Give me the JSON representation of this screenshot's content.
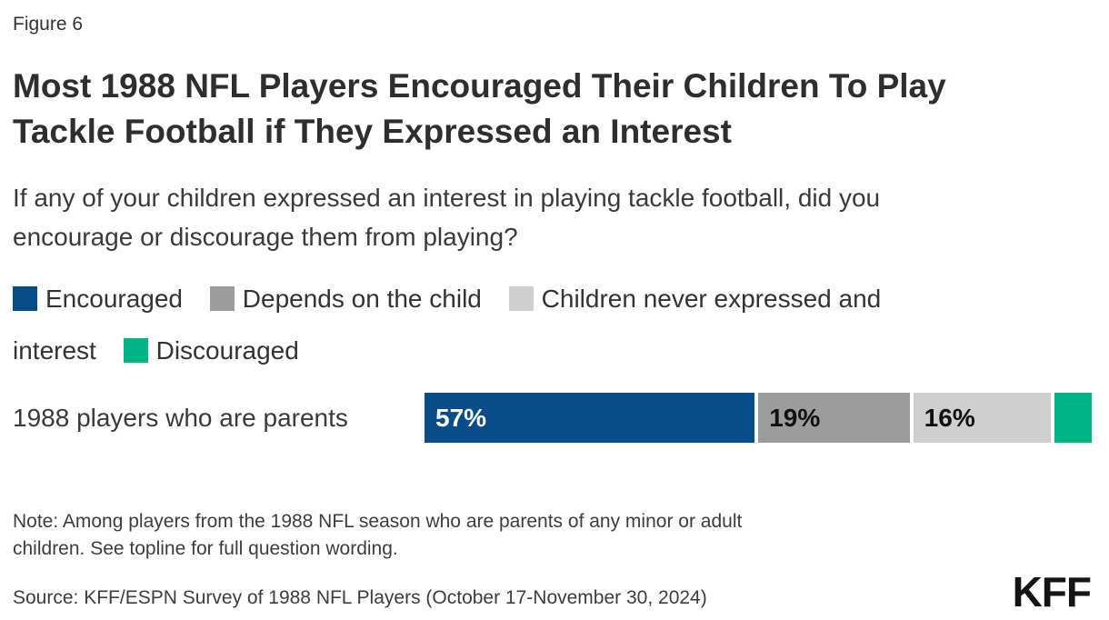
{
  "figure_label": "Figure 6",
  "title": "Most 1988 NFL Players Encouraged Their Children To Play Tackle Football if They Expressed an Interest",
  "subtitle": "If any of your children expressed an interest in playing tackle football, did you encourage or discourage them from playing?",
  "legend": [
    {
      "label": "Encouraged",
      "color": "#084C8A"
    },
    {
      "label": "Depends on the child",
      "color": "#9C9C9C"
    },
    {
      "label": "Children never expressed and interest",
      "color": "#CFCFCF"
    },
    {
      "label": "Discouraged",
      "color": "#00B585"
    }
  ],
  "chart_data": {
    "type": "bar",
    "orientation": "horizontal-stacked",
    "title": "Most 1988 NFL Players Encouraged Their Children To Play Tackle Football if They Expressed an Interest",
    "categories": [
      "1988 players who are parents"
    ],
    "series": [
      {
        "name": "Encouraged",
        "values": [
          57
        ],
        "color": "#084C8A",
        "bar_label": "57%",
        "label_color": "#ffffff"
      },
      {
        "name": "Depends on the child",
        "values": [
          19
        ],
        "color": "#9C9C9C",
        "bar_label": "19%",
        "label_color": "#111111"
      },
      {
        "name": "Children never expressed and interest",
        "values": [
          16
        ],
        "color": "#CFCFCF",
        "bar_label": "16%",
        "label_color": "#111111"
      },
      {
        "name": "Discouraged",
        "values": [
          8
        ],
        "color": "#00B585",
        "bar_label": "",
        "label_color": "#111111"
      }
    ],
    "xlim": [
      0,
      100
    ],
    "grid": false,
    "legend_position": "top"
  },
  "note": "Note: Among players from the 1988 NFL season who are parents of any minor or adult children. See topline for full question wording.",
  "source": "Source: KFF/ESPN Survey of 1988 NFL Players (October 17-November 30, 2024)",
  "logo_text": "KFF"
}
